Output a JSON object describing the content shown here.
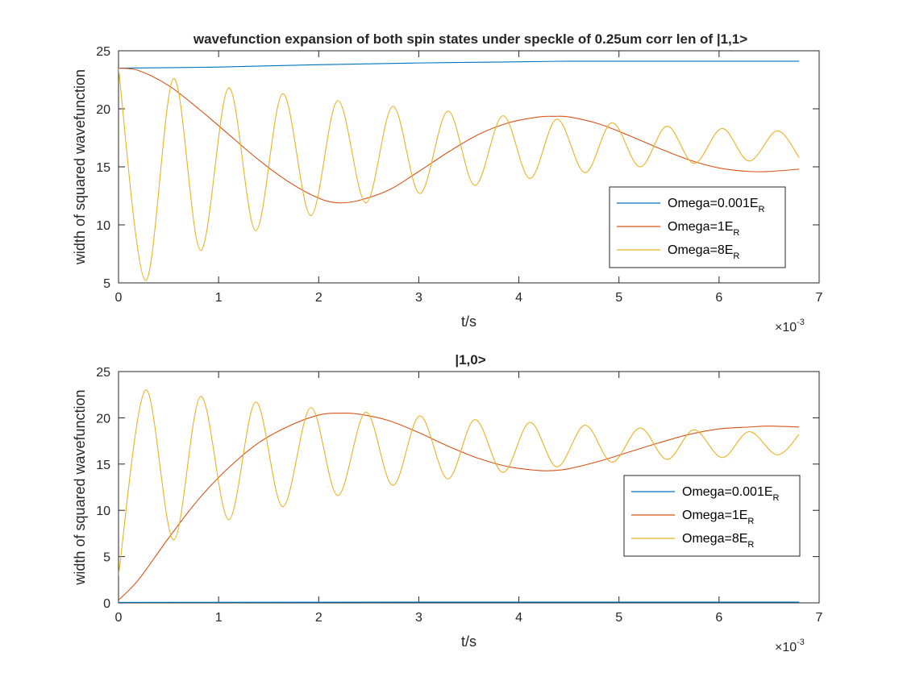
{
  "figure": {
    "background": "#ffffff"
  },
  "chart_data": [
    {
      "type": "line",
      "title": "wavefunction expansion of both spin states under speckle of 0.25um corr len of |1,1>",
      "xlabel": "t/s",
      "ylabel": "width of squared wavefunction",
      "x_exponent_base": "×10",
      "x_exponent_power": "-3",
      "xlim": [
        0,
        7
      ],
      "ylim": [
        5,
        25
      ],
      "xticks": [
        "0",
        "1",
        "2",
        "3",
        "4",
        "5",
        "6",
        "7"
      ],
      "yticks": [
        "5",
        "10",
        "15",
        "20",
        "25"
      ],
      "x_unit_scale": 0.001,
      "grid": false,
      "legend_position": "lower-right",
      "series": [
        {
          "name": "Omega=0.001E",
          "name_subscript": "R",
          "color": "#0072BD",
          "x": [
            0,
            1,
            2,
            3,
            4,
            4.5,
            5,
            6,
            6.8
          ],
          "values": [
            23.5,
            23.6,
            23.8,
            23.95,
            24.05,
            24.1,
            24.1,
            24.1,
            24.1
          ]
        },
        {
          "name": "Omega=1E",
          "name_subscript": "R",
          "color": "#D95319",
          "x": [
            0,
            0.2,
            0.5,
            0.8,
            1.1,
            1.4,
            1.7,
            2.0,
            2.2,
            2.4,
            2.7,
            3.0,
            3.3,
            3.6,
            3.9,
            4.2,
            4.35,
            4.5,
            4.8,
            5.1,
            5.4,
            5.7,
            6.0,
            6.3,
            6.5,
            6.8
          ],
          "values": [
            23.5,
            23.3,
            22.0,
            20.0,
            17.8,
            15.6,
            13.7,
            12.3,
            11.9,
            12.1,
            13.0,
            14.6,
            16.3,
            17.8,
            18.8,
            19.3,
            19.35,
            19.3,
            18.7,
            17.7,
            16.6,
            15.6,
            14.9,
            14.6,
            14.6,
            14.8
          ]
        },
        {
          "name": "Omega=8E",
          "name_subscript": "R",
          "color": "#EDB120",
          "x": [
            0,
            0.27,
            0.55,
            0.82,
            1.1,
            1.37,
            1.64,
            1.92,
            2.19,
            2.47,
            2.74,
            3.01,
            3.29,
            3.56,
            3.84,
            4.11,
            4.38,
            4.66,
            4.93,
            5.21,
            5.48,
            5.75,
            6.03,
            6.3,
            6.58,
            6.8
          ],
          "values": [
            23.5,
            5.2,
            22.6,
            7.8,
            21.8,
            9.5,
            21.3,
            10.8,
            20.7,
            11.9,
            20.2,
            12.7,
            19.8,
            13.4,
            19.4,
            14.0,
            19.1,
            14.5,
            18.8,
            15.0,
            18.5,
            15.3,
            18.3,
            15.5,
            18.1,
            15.8
          ]
        }
      ]
    },
    {
      "type": "line",
      "title": "|1,0>",
      "xlabel": "t/s",
      "ylabel": "width of squared wavefunction",
      "x_exponent_base": "×10",
      "x_exponent_power": "-3",
      "xlim": [
        0,
        7
      ],
      "ylim": [
        0,
        25
      ],
      "xticks": [
        "0",
        "1",
        "2",
        "3",
        "4",
        "5",
        "6",
        "7"
      ],
      "yticks": [
        "0",
        "5",
        "10",
        "15",
        "20",
        "25"
      ],
      "x_unit_scale": 0.001,
      "grid": false,
      "legend_position": "lower-right",
      "series": [
        {
          "name": "Omega=0.001E",
          "name_subscript": "R",
          "color": "#0072BD",
          "x": [
            0,
            1,
            2,
            3,
            4,
            5,
            6,
            6.8
          ],
          "values": [
            0.05,
            0.06,
            0.07,
            0.08,
            0.08,
            0.08,
            0.08,
            0.08
          ]
        },
        {
          "name": "Omega=1E",
          "name_subscript": "R",
          "color": "#D95319",
          "x": [
            0,
            0.2,
            0.5,
            0.8,
            1.1,
            1.4,
            1.7,
            2.0,
            2.2,
            2.4,
            2.7,
            3.0,
            3.3,
            3.6,
            3.9,
            4.2,
            4.35,
            4.5,
            4.8,
            5.1,
            5.4,
            5.7,
            6.0,
            6.3,
            6.5,
            6.8
          ],
          "values": [
            0.3,
            2.5,
            7.0,
            11.2,
            14.6,
            17.3,
            19.1,
            20.3,
            20.5,
            20.4,
            19.7,
            18.4,
            16.9,
            15.6,
            14.7,
            14.3,
            14.3,
            14.5,
            15.3,
            16.3,
            17.3,
            18.2,
            18.8,
            19.0,
            19.1,
            19.0
          ]
        },
        {
          "name": "Omega=8E",
          "name_subscript": "R",
          "color": "#EDB120",
          "x": [
            0,
            0.27,
            0.55,
            0.82,
            1.1,
            1.37,
            1.64,
            1.92,
            2.19,
            2.47,
            2.74,
            3.01,
            3.29,
            3.56,
            3.84,
            4.11,
            4.38,
            4.66,
            4.93,
            5.21,
            5.48,
            5.75,
            6.03,
            6.3,
            6.58,
            6.8
          ],
          "values": [
            3.0,
            23.0,
            6.8,
            22.3,
            9.0,
            21.7,
            10.4,
            21.1,
            11.6,
            20.6,
            12.7,
            20.2,
            13.4,
            19.8,
            14.1,
            19.5,
            14.7,
            19.2,
            15.2,
            18.9,
            15.5,
            18.7,
            15.7,
            18.5,
            16.0,
            18.2
          ]
        }
      ]
    }
  ]
}
